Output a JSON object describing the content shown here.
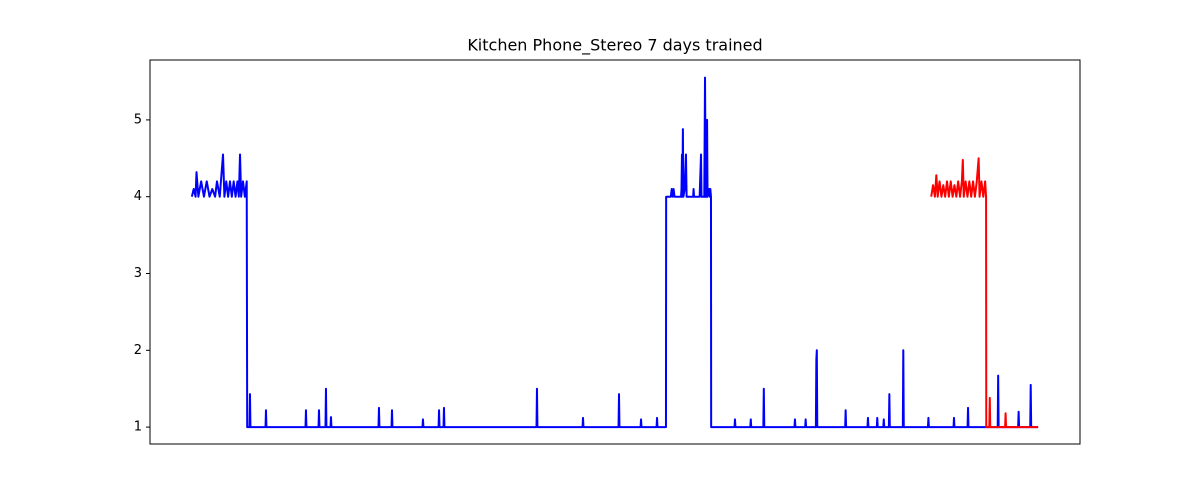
{
  "chart_data": {
    "type": "line",
    "title": "Kitchen Phone_Stereo 7 days trained",
    "xlim": [
      0,
      100
    ],
    "ylim": [
      0.78,
      5.78
    ],
    "yticks": [
      1,
      2,
      3,
      4,
      5
    ],
    "series": [
      {
        "color": "#0000ff",
        "x": [
          4.5,
          4.7,
          4.9,
          5.0,
          5.2,
          5.5,
          5.8,
          6.1,
          6.4,
          6.7,
          7.0,
          7.2,
          7.5,
          7.85,
          8.0,
          8.2,
          8.4,
          8.6,
          8.8,
          9.0,
          9.2,
          9.4,
          9.55,
          9.68,
          9.8,
          10.0,
          10.2,
          10.4,
          10.45,
          10.7,
          10.75,
          10.8,
          12.42,
          12.47,
          12.52,
          16.72,
          16.77,
          16.82,
          18.12,
          18.17,
          18.22,
          18.87,
          18.92,
          18.97,
          19.41,
          19.46,
          19.51,
          24.57,
          24.62,
          24.67,
          25.97,
          26.02,
          26.07,
          29.3,
          29.35,
          29.4,
          31.03,
          31.08,
          31.13,
          31.56,
          31.61,
          31.66,
          41.56,
          41.61,
          41.66,
          46.51,
          46.56,
          46.61,
          50.38,
          50.43,
          50.48,
          52.75,
          52.8,
          52.85,
          54.47,
          54.52,
          54.57,
          55.48,
          55.5,
          56.0,
          56.1,
          56.2,
          56.3,
          56.4,
          57.1,
          57.15,
          57.2,
          57.25,
          57.3,
          57.35,
          57.5,
          57.63,
          57.7,
          58.4,
          58.45,
          58.5,
          59.1,
          59.25,
          59.3,
          59.6,
          59.68,
          59.75,
          59.85,
          59.9,
          59.95,
          60.1,
          60.2,
          60.25,
          60.32,
          60.34,
          62.85,
          62.9,
          62.95,
          64.55,
          64.6,
          64.65,
          65.95,
          66.0,
          66.05,
          69.3,
          69.35,
          69.4,
          70.45,
          70.5,
          70.55,
          71.6,
          71.65,
          71.7,
          71.75,
          74.75,
          74.8,
          74.85,
          77.15,
          77.2,
          77.25,
          78.15,
          78.2,
          78.25,
          78.85,
          78.9,
          78.95,
          79.45,
          79.5,
          79.55,
          80.95,
          81.0,
          81.05,
          83.65,
          83.7,
          83.75,
          86.4,
          86.45,
          86.5,
          87.91,
          87.96,
          88.01,
          91.15,
          91.2,
          91.25,
          93.35,
          93.4,
          93.45,
          94.65,
          94.7,
          94.75,
          95.5
        ],
        "values": [
          4.0,
          4.1,
          4.0,
          4.32,
          4.0,
          4.2,
          4.0,
          4.2,
          4.0,
          4.1,
          4.0,
          4.2,
          4.0,
          4.55,
          4.0,
          4.2,
          4.0,
          4.2,
          4.0,
          4.2,
          4.0,
          4.2,
          4.0,
          4.55,
          4.0,
          4.2,
          4.0,
          4.2,
          1,
          1,
          1.43,
          1,
          1,
          1.22,
          1,
          1,
          1.22,
          1,
          1,
          1.22,
          1,
          1,
          1.5,
          1,
          1,
          1.13,
          1,
          1,
          1.25,
          1,
          1,
          1.22,
          1,
          1,
          1.1,
          1,
          1,
          1.22,
          1,
          1,
          1.25,
          1,
          1,
          1.5,
          1,
          1,
          1.12,
          1,
          1,
          1.43,
          1,
          1,
          1.1,
          1,
          1,
          1.12,
          1,
          1,
          4.0,
          4.0,
          4.1,
          4.0,
          4.1,
          4.0,
          4.0,
          4.1,
          4.55,
          4.0,
          4.88,
          4.0,
          4.1,
          4.55,
          4.0,
          4.0,
          4.1,
          4.0,
          4.0,
          4.55,
          4.0,
          4.0,
          5.55,
          4.0,
          4.0,
          5.0,
          4.0,
          4.1,
          4.0,
          4.1,
          4.0,
          1,
          1,
          1.1,
          1,
          1,
          1.1,
          1,
          1,
          1.5,
          1,
          1,
          1.1,
          1,
          1,
          1.1,
          1,
          1,
          1.88,
          2.0,
          1,
          1,
          1.22,
          1,
          1,
          1.12,
          1,
          1,
          1.12,
          1,
          1,
          1.1,
          1,
          1,
          1.43,
          1,
          1,
          2.0,
          1,
          1,
          1.12,
          1,
          1,
          1.12,
          1,
          1,
          1.25,
          1,
          1,
          1.67,
          1,
          1,
          1.2,
          1,
          1,
          1.55,
          1,
          1
        ]
      },
      {
        "color": "#ff0000",
        "x": [
          84.0,
          84.2,
          84.4,
          84.55,
          84.7,
          84.9,
          85.1,
          85.3,
          85.5,
          85.7,
          85.9,
          86.1,
          86.3,
          86.5,
          86.7,
          86.9,
          87.1,
          87.3,
          87.4,
          87.5,
          87.7,
          87.9,
          88.1,
          88.3,
          88.5,
          88.7,
          88.9,
          89.1,
          89.2,
          89.4,
          89.6,
          89.8,
          89.9,
          89.92,
          90.25,
          90.3,
          90.35,
          91.95,
          92.0,
          92.05,
          95.5
        ],
        "values": [
          4.0,
          4.15,
          4.0,
          4.28,
          4.0,
          4.2,
          4.0,
          4.15,
          4.0,
          4.2,
          4.0,
          4.2,
          4.0,
          4.15,
          4.0,
          4.2,
          4.0,
          4.2,
          4.48,
          4.0,
          4.2,
          4.0,
          4.2,
          4.0,
          4.2,
          4.0,
          4.2,
          4.5,
          4.0,
          4.2,
          4.0,
          4.2,
          4.0,
          1,
          1,
          1.38,
          1,
          1,
          1.18,
          1,
          1
        ]
      }
    ]
  }
}
